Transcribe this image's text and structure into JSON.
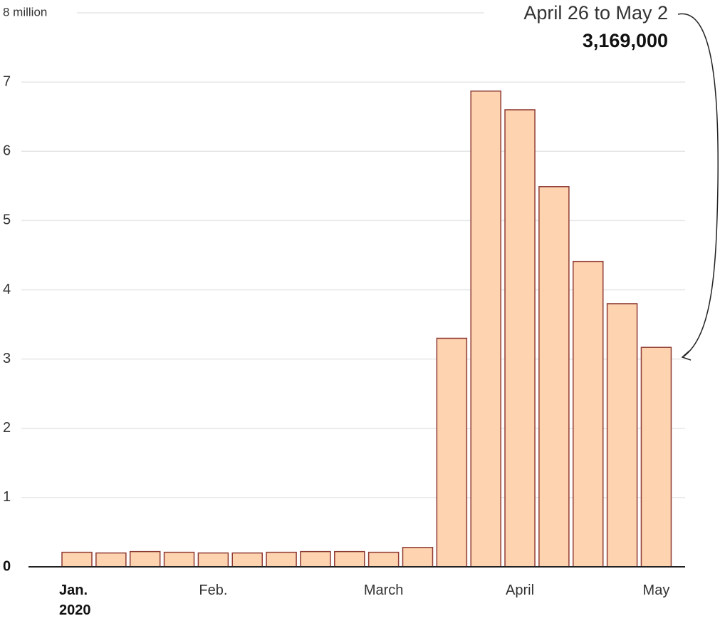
{
  "chart_data": {
    "type": "bar",
    "categories": [
      "Jan.\n2020",
      null,
      null,
      null,
      "Feb.",
      null,
      null,
      null,
      null,
      "March",
      null,
      null,
      null,
      "April",
      null,
      null,
      null,
      "May"
    ],
    "values": [
      0.21,
      0.2,
      0.22,
      0.21,
      0.2,
      0.2,
      0.21,
      0.22,
      0.22,
      0.21,
      0.28,
      3.3,
      6.87,
      6.6,
      5.49,
      4.41,
      3.8,
      3.169
    ],
    "color": "#fdd3b0",
    "edge_color": "#8f3b33",
    "ylim": [
      0,
      8
    ],
    "yticks": [
      0,
      1,
      2,
      3,
      4,
      5,
      6,
      7,
      {
        "value": 8,
        "label": "8 million"
      }
    ],
    "grid": true,
    "annotation": {
      "text": "April 26 to May 2",
      "value_label": "3,169,000"
    }
  }
}
